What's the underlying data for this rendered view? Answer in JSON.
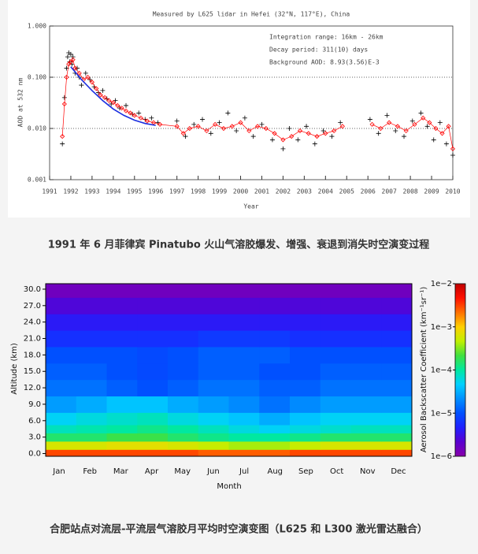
{
  "chart_data": [
    {
      "type": "scatter-line",
      "title": "Measured by L625 lidar in Hefei (32°N, 117°E), China",
      "x_label": "Year",
      "y_label": "AOD at 532 nm",
      "annotations": [
        "Integration range: 16km - 26km",
        "Decay period: 311(10) days",
        "Background AOD: 8.93(3.56)E-3"
      ],
      "xlim": [
        1991,
        2010
      ],
      "xticks": [
        1991,
        1992,
        1993,
        1994,
        1995,
        1996,
        1997,
        1998,
        1999,
        2000,
        2001,
        2002,
        2003,
        2004,
        2005,
        2006,
        2007,
        2008,
        2009,
        2010
      ],
      "ylim": [
        0.001,
        1.0
      ],
      "y_log": true,
      "yticks": [
        {
          "value": 0.001,
          "label": "0.001"
        },
        {
          "value": 0.01,
          "label": "0.010"
        },
        {
          "value": 0.1,
          "label": "0.100"
        },
        {
          "value": 1.0,
          "label": "1.000"
        }
      ],
      "reference_lines": [
        0.1,
        0.01
      ],
      "series": [
        {
          "color": "#000000",
          "marker": "plus",
          "line": false,
          "x": [
            1991.6,
            1991.7,
            1991.8,
            1991.85,
            1991.9,
            1991.95,
            1992.0,
            1992.05,
            1992.1,
            1992.2,
            1992.3,
            1992.4,
            1992.5,
            1992.7,
            1992.9,
            1993.1,
            1993.3,
            1993.5,
            1993.7,
            1993.9,
            1994.1,
            1994.3,
            1994.6,
            1994.9,
            1995.2,
            1995.5,
            1995.8,
            1996.1,
            1997.0,
            1997.4,
            1997.8,
            1998.2,
            1998.6,
            1999.0,
            1999.4,
            1999.8,
            2000.2,
            2000.6,
            2001.0,
            2001.5,
            2002.0,
            2002.3,
            2002.7,
            2003.1,
            2003.5,
            2003.9,
            2004.3,
            2004.7,
            2006.1,
            2006.5,
            2006.9,
            2007.3,
            2007.7,
            2008.1,
            2008.5,
            2008.8,
            2009.1,
            2009.4,
            2009.7,
            2010.0
          ],
          "values": [
            0.005,
            0.04,
            0.15,
            0.25,
            0.3,
            0.2,
            0.28,
            0.18,
            0.25,
            0.12,
            0.15,
            0.1,
            0.07,
            0.12,
            0.09,
            0.065,
            0.05,
            0.055,
            0.038,
            0.03,
            0.035,
            0.025,
            0.028,
            0.019,
            0.02,
            0.015,
            0.016,
            0.013,
            0.014,
            0.007,
            0.012,
            0.015,
            0.008,
            0.013,
            0.02,
            0.009,
            0.016,
            0.007,
            0.012,
            0.006,
            0.004,
            0.01,
            0.006,
            0.011,
            0.005,
            0.009,
            0.007,
            0.013,
            0.015,
            0.008,
            0.018,
            0.009,
            0.007,
            0.014,
            0.02,
            0.011,
            0.006,
            0.013,
            0.005,
            0.003
          ]
        },
        {
          "color": "#ff0000",
          "marker": "diamond",
          "line": true,
          "x": [
            1991.6,
            1991.7,
            1991.8,
            1991.9,
            1992.0,
            1992.1,
            1992.2,
            1992.4,
            1992.6,
            1992.8,
            1993.0,
            1993.2,
            1993.4,
            1993.6,
            1993.8,
            1994.0,
            1994.2,
            1994.4,
            1994.6,
            1994.8,
            1995.0,
            1995.3,
            1995.6,
            1995.9,
            1996.2,
            1997.0,
            1997.3,
            1997.6,
            1998.0,
            1998.4,
            1998.8,
            1999.2,
            1999.6,
            2000.0,
            2000.4,
            2000.8,
            2001.2,
            2001.6,
            2002.0,
            2002.4,
            2002.8,
            2003.2,
            2003.6,
            2004.0,
            2004.4,
            2004.8,
            2005.5,
            2006.2,
            2006.6,
            2007.0,
            2007.4,
            2007.8,
            2008.2,
            2008.6,
            2008.9,
            2009.2,
            2009.5,
            2009.8,
            2010.0
          ],
          "values": [
            0.007,
            0.03,
            0.1,
            0.18,
            0.2,
            0.22,
            0.15,
            0.12,
            0.09,
            0.1,
            0.08,
            0.06,
            0.045,
            0.04,
            0.035,
            0.032,
            0.028,
            0.025,
            0.022,
            0.02,
            0.018,
            0.016,
            0.014,
            0.013,
            0.012,
            0.011,
            0.008,
            0.01,
            0.011,
            0.009,
            0.012,
            0.01,
            0.011,
            0.013,
            0.009,
            0.011,
            0.01,
            0.008,
            0.006,
            0.007,
            0.009,
            0.008,
            0.007,
            0.008,
            0.009,
            0.011,
            null,
            0.012,
            0.01,
            0.013,
            0.011,
            0.009,
            0.012,
            0.016,
            0.013,
            0.01,
            0.008,
            0.011,
            0.004
          ]
        },
        {
          "color": "#1a2ee0",
          "marker": "none",
          "line": true,
          "x": [
            1992.0,
            1992.5,
            1993.0,
            1993.5,
            1994.0,
            1994.5,
            1995.0,
            1995.5,
            1996.0
          ],
          "values": [
            0.16,
            0.09,
            0.055,
            0.035,
            0.024,
            0.018,
            0.0145,
            0.0125,
            0.0115
          ]
        }
      ]
    },
    {
      "type": "heatmap",
      "x_label": "Month",
      "y_label": "Altitude (km)",
      "colorbar_label": "Aerosol Backscatter Coefficient (km⁻¹sr⁻¹)",
      "categories": [
        "Jan",
        "Feb",
        "Mar",
        "Apr",
        "May",
        "Jun",
        "Jul",
        "Aug",
        "Sep",
        "Oct",
        "Nov",
        "Dec"
      ],
      "y": [
        0,
        1.5,
        3,
        4.5,
        6,
        9,
        12,
        15,
        18,
        21,
        24,
        27,
        30
      ],
      "ylim": [
        -0.5,
        31
      ],
      "yticks": [
        {
          "value": 0,
          "label": "0.0"
        },
        {
          "value": 3,
          "label": "3.0"
        },
        {
          "value": 6,
          "label": "6.0"
        },
        {
          "value": 9,
          "label": "9.0"
        },
        {
          "value": 12,
          "label": "12.0"
        },
        {
          "value": 15,
          "label": "15.0"
        },
        {
          "value": 18,
          "label": "18.0"
        },
        {
          "value": 21,
          "label": "21.0"
        },
        {
          "value": 24,
          "label": "24.0"
        },
        {
          "value": 27,
          "label": "27.0"
        },
        {
          "value": 30,
          "label": "30.0"
        }
      ],
      "clim": [
        1e-06,
        0.01
      ],
      "c_log": true,
      "cticks": [
        {
          "value": 1e-06,
          "label": "1e−6"
        },
        {
          "value": 1e-05,
          "label": "1e−5"
        },
        {
          "value": 0.0001,
          "label": "1e−4"
        },
        {
          "value": 0.001,
          "label": "1e−3"
        },
        {
          "value": 0.01,
          "label": "1e−2"
        }
      ],
      "colormap": [
        "#8800aa",
        "#5a00d0",
        "#2020ff",
        "#0050ff",
        "#0090ff",
        "#00d0ff",
        "#00e8a0",
        "#40e040",
        "#c0f000",
        "#ffd000",
        "#ff7000",
        "#ff1000",
        "#c00000"
      ],
      "values": [
        [
          0.003,
          0.003,
          0.003,
          0.003,
          0.003,
          0.0025,
          0.0025,
          0.0025,
          0.003,
          0.003,
          0.003,
          0.003
        ],
        [
          0.0006,
          0.0006,
          0.0007,
          0.0007,
          0.0006,
          0.0005,
          0.0004,
          0.0004,
          0.0005,
          0.0006,
          0.0006,
          0.0006
        ],
        [
          0.00015,
          0.00015,
          0.0002,
          0.0002,
          0.00015,
          0.00012,
          0.0001,
          0.0001,
          0.00012,
          0.00015,
          0.00015,
          0.00015
        ],
        [
          8e-05,
          9e-05,
          0.0001,
          0.00012,
          0.0001,
          8e-05,
          6e-05,
          5e-05,
          6e-05,
          7e-05,
          8e-05,
          8e-05
        ],
        [
          5e-05,
          6e-05,
          7e-05,
          8e-05,
          6e-05,
          5e-05,
          4e-05,
          3e-05,
          4e-05,
          5e-05,
          5e-05,
          5e-05
        ],
        [
          2.5e-05,
          3e-05,
          4e-05,
          4e-05,
          3e-05,
          2.5e-05,
          2e-05,
          1.5e-05,
          2e-05,
          2.5e-05,
          2.5e-05,
          2.5e-05
        ],
        [
          1.5e-05,
          1.5e-05,
          1.2e-05,
          1e-05,
          1.2e-05,
          1.5e-05,
          1.5e-05,
          1.2e-05,
          1.2e-05,
          1.5e-05,
          1.5e-05,
          1.5e-05
        ],
        [
          1.2e-05,
          1.2e-05,
          1e-05,
          9e-06,
          1e-05,
          1.2e-05,
          1.2e-05,
          1e-05,
          1e-05,
          1.2e-05,
          1.2e-05,
          1.2e-05
        ],
        [
          1e-05,
          1e-05,
          1e-05,
          9e-06,
          1e-05,
          1.2e-05,
          1.2e-05,
          1.2e-05,
          1e-05,
          1e-05,
          1e-05,
          1e-05
        ],
        [
          6e-06,
          6e-06,
          6e-06,
          6e-06,
          6e-06,
          7e-06,
          7e-06,
          7e-06,
          6e-06,
          6e-06,
          6e-06,
          6e-06
        ],
        [
          4e-06,
          4e-06,
          4e-06,
          4e-06,
          4e-06,
          4e-06,
          4e-06,
          4e-06,
          4e-06,
          4e-06,
          4e-06,
          4e-06
        ],
        [
          2.5e-06,
          2.5e-06,
          2.5e-06,
          2.5e-06,
          2.5e-06,
          2.5e-06,
          2.5e-06,
          2.5e-06,
          2.5e-06,
          2.5e-06,
          2.5e-06,
          2.5e-06
        ],
        [
          1.5e-06,
          1.5e-06,
          1.5e-06,
          1.5e-06,
          1.5e-06,
          1.5e-06,
          1.5e-06,
          1.5e-06,
          1.5e-06,
          1.5e-06,
          1.5e-06,
          1.5e-06
        ]
      ]
    }
  ],
  "captions": [
    "1991 年 6 月菲律宾 Pinatubo 火山气溶胶爆发、增强、衰退到消失时空演变过程",
    "合肥站点对流层-平流层气溶胶月平均时空演变图（L625 和 L300 激光雷达融合）"
  ]
}
